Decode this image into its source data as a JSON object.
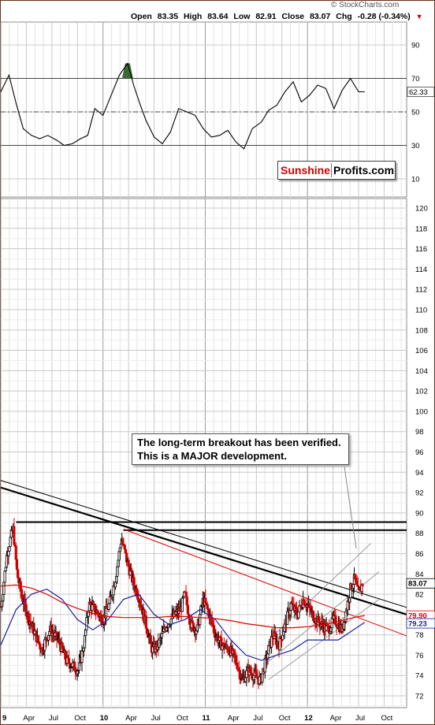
{
  "header": {
    "brand": "© StockCharts.com",
    "open_label": "Open",
    "open": "83.35",
    "high_label": "High",
    "high": "83.64",
    "low_label": "Low",
    "low": "82.91",
    "close_label": "Close",
    "close": "83.07",
    "chg_label": "Chg",
    "chg": "-0.28 (-0.34%)",
    "chg_arrow": "▼"
  },
  "watermark": {
    "part1": "Sunshine",
    "part2": "Profits.com"
  },
  "annotation": {
    "line1": "The long-term breakout has been verified.",
    "line2": "This is a MAJOR development."
  },
  "colors": {
    "price_up": "#000000",
    "price_down": "#cc0000",
    "sma_short": "#1c1c9c",
    "sma_long": "#dd0000",
    "rsi_line": "#000000",
    "rsi_overbought_fill": "#3a6b35",
    "grid": "#c8c8c8",
    "frame": "#6b2f1a"
  },
  "chart_data": [
    {
      "type": "line",
      "panel": "RSI",
      "ylim": [
        0,
        100
      ],
      "yticks": [
        "90",
        "70",
        "50",
        "30",
        "10"
      ],
      "reference_lines": [
        70,
        50,
        30
      ],
      "last_value_label": "62.33",
      "series": [
        {
          "values_x": [
            2009.0,
            2009.08,
            2009.15,
            2009.22,
            2009.3,
            2009.38,
            2009.46,
            2009.55,
            2009.62,
            2009.7,
            2009.78,
            2009.85,
            2009.92,
            2010.0,
            2010.08,
            2010.16,
            2010.24,
            2010.3,
            2010.36,
            2010.42,
            2010.5,
            2010.58,
            2010.66,
            2010.74,
            2010.82,
            2010.9,
            2010.98,
            2011.06,
            2011.14,
            2011.22,
            2011.3,
            2011.38,
            2011.46,
            2011.55,
            2011.62,
            2011.7,
            2011.78,
            2011.86,
            2011.94,
            2012.02,
            2012.1,
            2012.18,
            2012.26,
            2012.34,
            2012.42,
            2012.5,
            2012.56
          ],
          "values_y": [
            62,
            72,
            55,
            40,
            36,
            34,
            36,
            33,
            30,
            31,
            34,
            36,
            52,
            48,
            60,
            72,
            79,
            66,
            55,
            45,
            35,
            31,
            38,
            52,
            50,
            48,
            40,
            35,
            36,
            39,
            32,
            28,
            40,
            44,
            51,
            54,
            62,
            68,
            56,
            60,
            66,
            64,
            52,
            63,
            70,
            62,
            62
          ]
        }
      ]
    },
    {
      "type": "line",
      "panel": "Price",
      "ylim": [
        72,
        121
      ],
      "yticks": [
        "120",
        "118",
        "116",
        "114",
        "112",
        "110",
        "108",
        "106",
        "104",
        "102",
        "100",
        "98",
        "96",
        "94",
        "92",
        "90",
        "88",
        "86",
        "84",
        "82",
        "80",
        "78",
        "76",
        "74",
        "72"
      ],
      "x_tick_labels": [
        "9",
        "Apr",
        "Jul",
        "Oct",
        "10",
        "Apr",
        "Jul",
        "Oct",
        "11",
        "Apr",
        "Jul",
        "Oct",
        "12",
        "Apr",
        "Jul",
        "Oct"
      ],
      "last_value_labels": [
        "83.07",
        "79.90",
        "79.23"
      ],
      "series": [
        {
          "name": "",
          "values_x": [
            2009.0,
            2009.06,
            2009.12,
            2009.16,
            2009.2,
            2009.26,
            2009.32,
            2009.4,
            2009.48,
            2009.56,
            2009.64,
            2009.7,
            2009.76,
            2009.82,
            2009.86,
            2009.92,
            2010.0,
            2010.06,
            2010.12,
            2010.18,
            2010.24,
            2010.3,
            2010.36,
            2010.42,
            2010.48,
            2010.54,
            2010.62,
            2010.7,
            2010.76,
            2010.8,
            2010.86,
            2010.92,
            2010.98,
            2011.04,
            2011.1,
            2011.16,
            2011.24,
            2011.3,
            2011.36,
            2011.42,
            2011.48,
            2011.54,
            2011.58,
            2011.62,
            2011.66,
            2011.72,
            2011.78,
            2011.84,
            2011.9,
            2011.96,
            2012.02,
            2012.08,
            2012.14,
            2012.2,
            2012.26,
            2012.3,
            2012.34,
            2012.38,
            2012.42,
            2012.46,
            2012.5,
            2012.54
          ],
          "values_y": [
            80.5,
            86.0,
            88.5,
            84.0,
            82.0,
            80.0,
            78.5,
            76.5,
            78.5,
            77.5,
            75.5,
            75.0,
            74.5,
            77.5,
            81.0,
            80.5,
            79.5,
            81.0,
            83.5,
            87.5,
            85.0,
            83.0,
            81.5,
            79.0,
            76.5,
            77.0,
            79.0,
            80.0,
            80.5,
            82.0,
            79.0,
            78.5,
            81.5,
            80.0,
            78.0,
            77.0,
            76.5,
            75.5,
            73.5,
            74.5,
            74.0,
            73.5,
            75.0,
            76.5,
            78.0,
            77.0,
            79.0,
            81.0,
            80.0,
            81.5,
            80.5,
            79.5,
            79.0,
            78.5,
            79.5,
            79.0,
            78.5,
            80.5,
            82.5,
            83.5,
            82.0,
            83.1
          ]
        },
        {
          "name": "",
          "values_x": [
            2009.0,
            2009.15,
            2009.3,
            2009.45,
            2009.6,
            2009.75,
            2009.9,
            2010.05,
            2010.2,
            2010.35,
            2010.5,
            2010.65,
            2010.8,
            2010.95,
            2011.1,
            2011.25,
            2011.4,
            2011.55,
            2011.7,
            2011.85,
            2012.0,
            2012.15,
            2012.3,
            2012.45,
            2012.56
          ],
          "values_y": [
            77.0,
            80.5,
            82.0,
            82.5,
            81.5,
            79.5,
            78.5,
            79.5,
            81.5,
            82.0,
            80.0,
            79.0,
            79.5,
            80.5,
            79.5,
            77.5,
            76.0,
            75.5,
            76.0,
            76.5,
            77.5,
            77.5,
            77.5,
            78.5,
            79.23
          ]
        },
        {
          "name": "",
          "values_x": [
            2009.0,
            2009.15,
            2009.3,
            2009.45,
            2009.6,
            2009.75,
            2009.9,
            2010.05,
            2010.2,
            2010.35,
            2010.5,
            2010.65,
            2010.8,
            2010.95,
            2011.1,
            2011.25,
            2011.4,
            2011.55,
            2011.7,
            2011.85,
            2012.0,
            2012.15,
            2012.3,
            2012.45,
            2012.56
          ],
          "values_y": [
            82.8,
            82.9,
            82.6,
            82.0,
            81.2,
            80.6,
            80.1,
            79.8,
            79.7,
            79.7,
            79.7,
            79.8,
            79.8,
            79.7,
            79.6,
            79.4,
            79.1,
            78.9,
            78.7,
            78.7,
            78.8,
            79.0,
            79.3,
            79.7,
            79.9
          ]
        }
      ]
    }
  ]
}
